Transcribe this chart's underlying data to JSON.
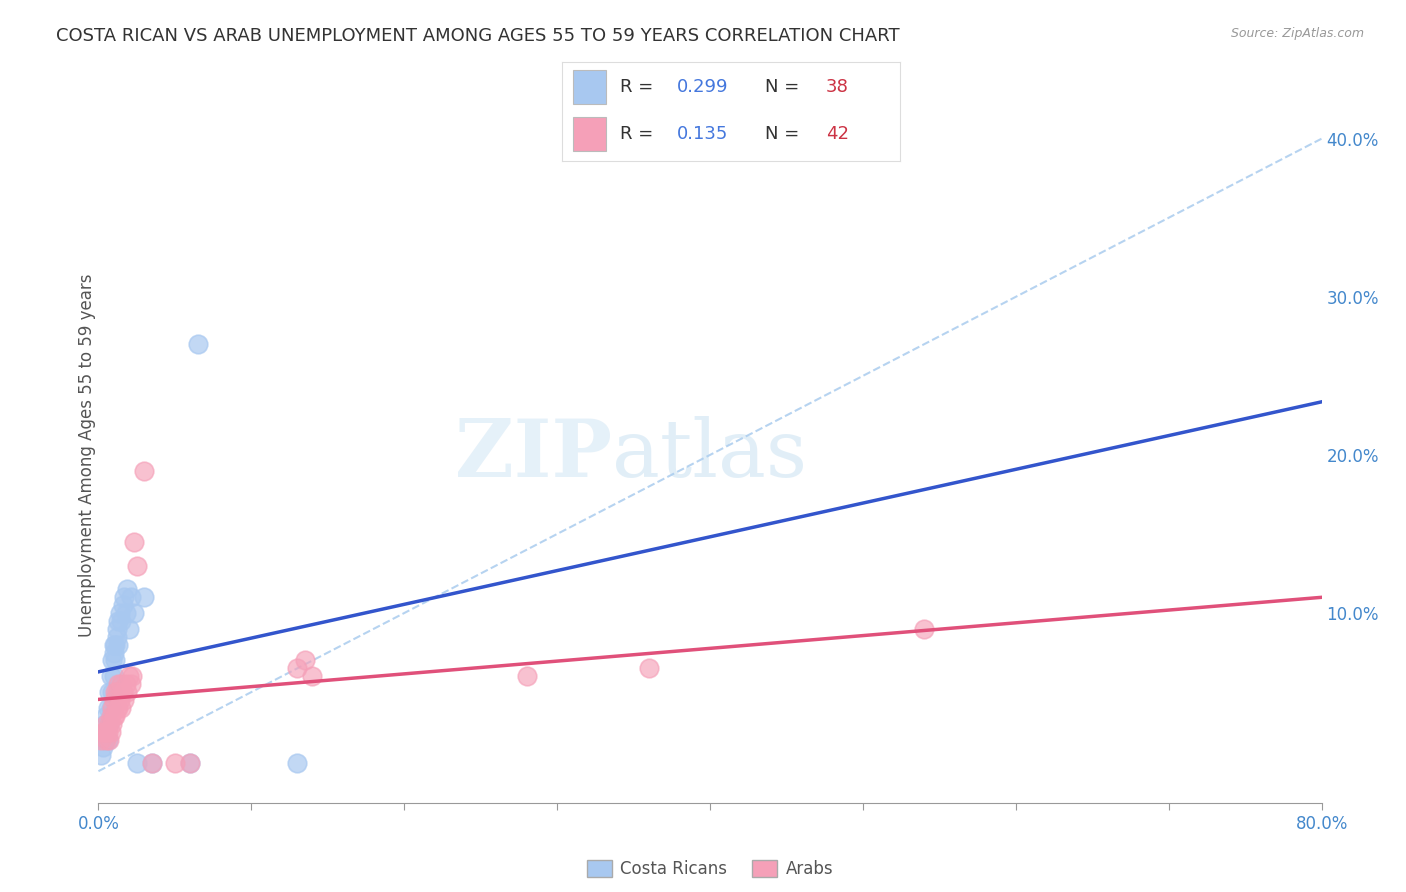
{
  "title": "COSTA RICAN VS ARAB UNEMPLOYMENT AMONG AGES 55 TO 59 YEARS CORRELATION CHART",
  "source": "Source: ZipAtlas.com",
  "ylabel": "Unemployment Among Ages 55 to 59 years",
  "xlim": [
    0.0,
    0.8
  ],
  "ylim": [
    -0.02,
    0.42
  ],
  "xticks": [
    0.0,
    0.1,
    0.2,
    0.3,
    0.4,
    0.5,
    0.6,
    0.7,
    0.8
  ],
  "xticklabels": [
    "0.0%",
    "",
    "",
    "",
    "",
    "",
    "",
    "",
    "80.0%"
  ],
  "yticks_right": [
    0.0,
    0.1,
    0.2,
    0.3,
    0.4
  ],
  "yticklabels_right": [
    "",
    "10.0%",
    "20.0%",
    "30.0%",
    "40.0%"
  ],
  "costa_rican_color": "#a8c8f0",
  "arab_color": "#f5a0b8",
  "trend_blue": "#3355cc",
  "trend_pink": "#e0507a",
  "ref_line_color": "#aaccee",
  "R_costa": "0.299",
  "N_costa": "38",
  "R_arab": "0.135",
  "N_arab": "42",
  "watermark_zip": "ZIP",
  "watermark_atlas": "atlas",
  "costa_rican_x": [
    0.002,
    0.003,
    0.004,
    0.004,
    0.005,
    0.005,
    0.006,
    0.006,
    0.007,
    0.007,
    0.008,
    0.008,
    0.009,
    0.009,
    0.01,
    0.01,
    0.01,
    0.011,
    0.011,
    0.012,
    0.012,
    0.013,
    0.013,
    0.014,
    0.015,
    0.016,
    0.017,
    0.018,
    0.019,
    0.02,
    0.021,
    0.023,
    0.025,
    0.03,
    0.035,
    0.06,
    0.065,
    0.13
  ],
  "costa_rican_y": [
    0.01,
    0.015,
    0.02,
    0.03,
    0.025,
    0.035,
    0.02,
    0.04,
    0.03,
    0.05,
    0.04,
    0.06,
    0.05,
    0.07,
    0.06,
    0.075,
    0.08,
    0.07,
    0.08,
    0.085,
    0.09,
    0.08,
    0.095,
    0.1,
    0.095,
    0.105,
    0.11,
    0.1,
    0.115,
    0.09,
    0.11,
    0.1,
    0.005,
    0.11,
    0.005,
    0.005,
    0.27,
    0.005
  ],
  "arab_x": [
    0.002,
    0.003,
    0.004,
    0.005,
    0.005,
    0.006,
    0.007,
    0.007,
    0.008,
    0.008,
    0.009,
    0.009,
    0.01,
    0.01,
    0.011,
    0.011,
    0.012,
    0.012,
    0.013,
    0.013,
    0.014,
    0.015,
    0.015,
    0.016,
    0.017,
    0.018,
    0.019,
    0.02,
    0.021,
    0.022,
    0.023,
    0.025,
    0.03,
    0.035,
    0.05,
    0.06,
    0.13,
    0.135,
    0.14,
    0.28,
    0.36,
    0.54
  ],
  "arab_y": [
    0.02,
    0.025,
    0.025,
    0.02,
    0.03,
    0.025,
    0.02,
    0.03,
    0.025,
    0.035,
    0.03,
    0.04,
    0.035,
    0.045,
    0.035,
    0.05,
    0.04,
    0.05,
    0.04,
    0.055,
    0.045,
    0.04,
    0.055,
    0.05,
    0.045,
    0.055,
    0.05,
    0.06,
    0.055,
    0.06,
    0.145,
    0.13,
    0.19,
    0.005,
    0.005,
    0.005,
    0.065,
    0.07,
    0.06,
    0.06,
    0.065,
    0.09
  ]
}
